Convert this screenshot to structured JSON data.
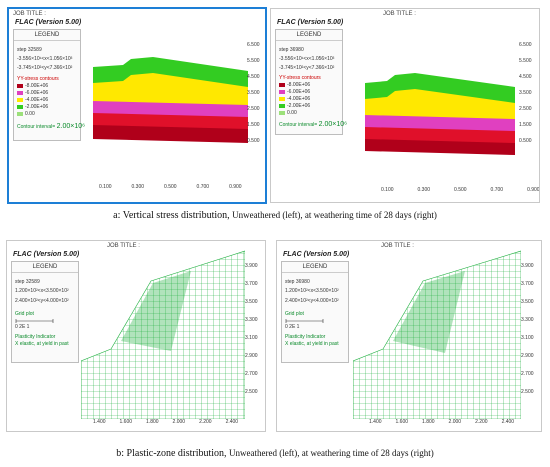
{
  "top": {
    "left": {
      "header": "JOB TITLE :",
      "title": "FLAC (Version 5.00)",
      "legend": "LEGEND",
      "step": "step 32589",
      "range1": "-3.556×10¹<x<1.056×10³",
      "range2": "-3.745×10²<y<7.366×10²",
      "contour_label": "YY-stress contours",
      "contour_values": [
        "-8.00E+06",
        "-6.00E+06",
        "-4.00E+06",
        "-2.00E+06",
        "0.00"
      ],
      "interval_label": "Contour interval=",
      "interval_value": "2.00×10⁶",
      "y_ticks": [
        "6.500",
        "5.500",
        "4.500",
        "3.500",
        "2.500",
        "1.500",
        "0.500"
      ],
      "x_ticks": [
        "0.100",
        "0.300",
        "0.500",
        "0.700",
        "0.900"
      ]
    },
    "right": {
      "header": "JOB TITLE :",
      "title": "FLAC (Version 5.00)",
      "legend": "LEGEND",
      "step": "step 36980",
      "range1": "-3.556×10¹<x<1.056×10³",
      "range2": "-3.745×10²<y<7.366×10²",
      "contour_label": "YY-stress contours",
      "contour_values": [
        "-8.00E+06",
        "-6.00E+06",
        "-4.00E+06",
        "-2.00E+06",
        "0.00"
      ],
      "interval_label": "Contour interval=",
      "interval_value": "2.00×10⁶",
      "y_ticks": [
        "6.500",
        "5.500",
        "4.500",
        "3.500",
        "2.500",
        "1.500",
        "0.500"
      ],
      "x_ticks": [
        "0.100",
        "0.300",
        "0.500",
        "0.700",
        "0.900"
      ]
    },
    "caption_prefix": "a: Vertical stress distribution,",
    "caption_suffix": "Unweathered (left), at weathering time of 28 days (right)"
  },
  "bottom": {
    "left": {
      "header": "JOB TITLE :",
      "title": "FLAC (Version 5.00)",
      "legend": "LEGEND",
      "step": "step 32589",
      "range1": "1.200×10²<x<3.500×10²",
      "range2": "2.400×10²<y<4.000×10²",
      "grid_label": "Grid plot",
      "scale": "0    2E 1",
      "plasticity_label": "Plasticity Indicator",
      "plasticity_desc": "X elastic, at yield in past",
      "y_ticks": [
        "3.900",
        "3.700",
        "3.500",
        "3.300",
        "3.100",
        "2.900",
        "2.700",
        "2.500"
      ],
      "x_ticks": [
        "1.400",
        "1.600",
        "1.800",
        "2.000",
        "2.200",
        "2.400"
      ],
      "x_unit": "(*10^2)"
    },
    "right": {
      "header": "JOB TITLE :",
      "title": "FLAC (Version 5.00)",
      "legend": "LEGEND",
      "step": "step 36980",
      "range1": "1.200×10²<x<3.500×10²",
      "range2": "2.400×10²<y<4.000×10²",
      "grid_label": "Grid plot",
      "scale": "0    2E 1",
      "plasticity_label": "Plasticity Indicator",
      "plasticity_desc": "X elastic, at yield in past",
      "y_ticks": [
        "3.900",
        "3.700",
        "3.500",
        "3.300",
        "3.100",
        "2.900",
        "2.700",
        "2.500"
      ],
      "x_ticks": [
        "1.400",
        "1.600",
        "1.800",
        "2.000",
        "2.200",
        "2.400"
      ],
      "x_unit": "(*10^2)"
    },
    "caption_prefix": "b: Plastic-zone distribution,",
    "caption_suffix": "Unweathered (left), at weathering time of 28 days (right)"
  },
  "colors": {
    "band_red_dark": "#b0001a",
    "band_red": "#e0102a",
    "band_magenta": "#e040c0",
    "band_yellow": "#ffe800",
    "band_green": "#33cc22",
    "mesh_green": "#20b040",
    "selection_blue": "#1d7fd6"
  }
}
